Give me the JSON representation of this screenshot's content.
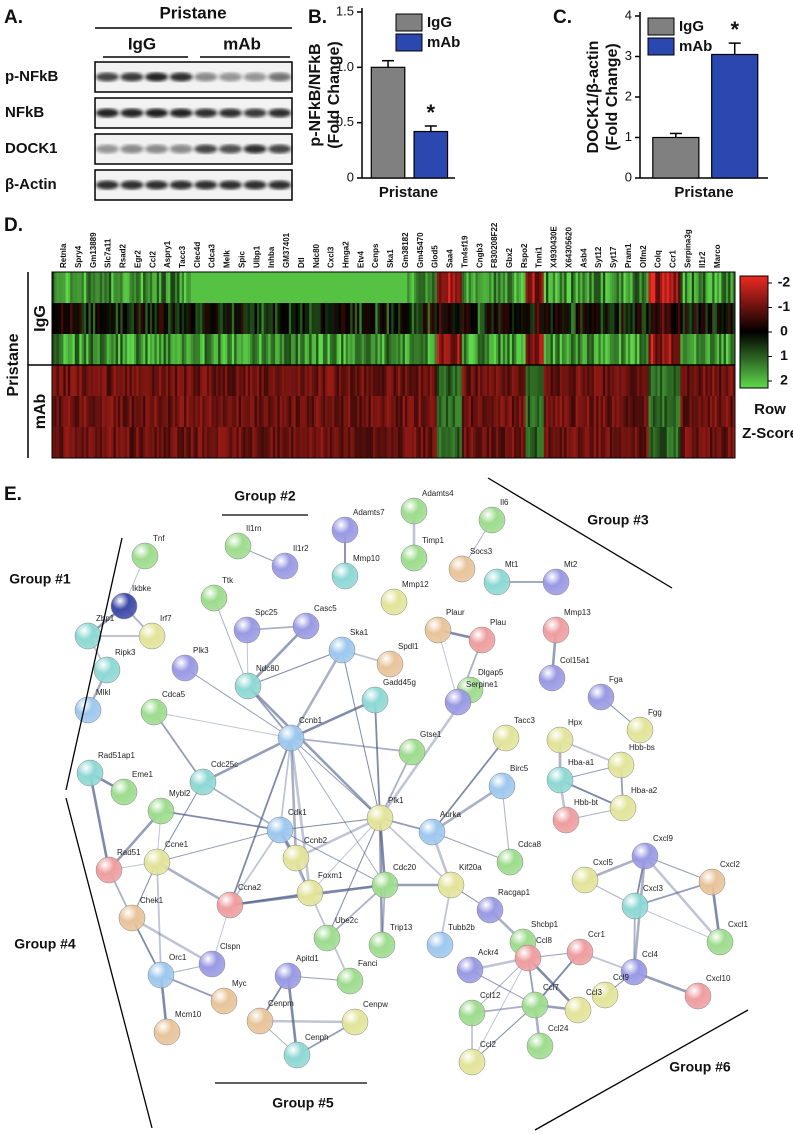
{
  "panel_a": {
    "label": "A.",
    "treatment": "Pristane",
    "groups": [
      "IgG",
      "mAb"
    ],
    "rows": [
      "p-NFkB",
      "NFkB",
      "DOCK1",
      "β-Actin"
    ]
  },
  "chart_data": [
    {
      "type": "bar",
      "label": "B.",
      "ylabel": [
        "p-NFkB/NFkB",
        "(Fold Change)"
      ],
      "categories": [
        "Pristane"
      ],
      "series": [
        {
          "name": "IgG",
          "color": "#808080",
          "values": [
            1.0
          ],
          "errors": [
            0.06
          ]
        },
        {
          "name": "mAb",
          "color": "#2b47b0",
          "values": [
            0.42
          ],
          "errors": [
            0.05
          ]
        }
      ],
      "annotation": "*",
      "ylim": [
        0,
        1.5
      ],
      "yticks": [
        0,
        0.5,
        {
          "value": 1,
          "label": "1.0"
        },
        1.5
      ]
    },
    {
      "type": "bar",
      "label": "C.",
      "ylabel": [
        "DOCK1/β-actin",
        "(Fold Change)"
      ],
      "categories": [
        "Pristane"
      ],
      "series": [
        {
          "name": "IgG",
          "color": "#808080",
          "values": [
            1.0
          ],
          "errors": [
            0.1
          ]
        },
        {
          "name": "mAb",
          "color": "#2b47b0",
          "values": [
            3.05
          ],
          "errors": [
            0.28
          ]
        }
      ],
      "annotation": "*",
      "ylim": [
        0,
        4
      ],
      "yticks": [
        0,
        1,
        2,
        3,
        4
      ]
    }
  ],
  "heatmap": {
    "label": "D.",
    "treatment": "Pristane",
    "groups": [
      "IgG",
      "mAb"
    ],
    "genes": [
      "Retnla",
      "Spry4",
      "Gm13889",
      "Slc7a11",
      "Rsad2",
      "Egr2",
      "Ccl2",
      "Aspry1",
      "Tacc3",
      "Clec4d",
      "Cdca3",
      "Melk",
      "Spic",
      "Ulbp1",
      "Inhba",
      "GM37401",
      "Dtl",
      "Ndc80",
      "Cxcl3",
      "Hmga2",
      "Etv4",
      "Cenps",
      "Ska1",
      "Gm38182",
      "Gm45470",
      "Glod5",
      "Saa4",
      "Tm4sf19",
      "Cngb3",
      "F830208F22",
      "Gbx2",
      "Rspo2",
      "Tnni1",
      "X4930430E",
      "X64305620",
      "Asb4",
      "Syt12",
      "Syt17",
      "Pram1",
      "Olfm2",
      "Colq",
      "Ccr1",
      "Serpina3g",
      "Il1r2",
      "Marco"
    ],
    "scale_ticks": [
      -2,
      -1,
      0,
      1,
      2
    ],
    "scale_title": [
      "Row",
      "Z-Score"
    ]
  },
  "network": {
    "label": "E.",
    "groups": [
      "Group #1",
      "Group #2",
      "Group #3",
      "Group #4",
      "Group #5",
      "Group #6"
    ],
    "nodes": [
      "Tnf",
      "Ikbke",
      "Irf7",
      "Zbp1",
      "Ripk3",
      "Mlkl",
      "Rad51ap1",
      "Eme1",
      "Rad51",
      "Ccne1",
      "Chek1",
      "Orc1",
      "Clspn",
      "Myc",
      "Mcm10",
      "Mybl2",
      "Cdca5",
      "Plk3",
      "Spc25",
      "Ttk",
      "Casc5",
      "Ndc80",
      "Ska1",
      "Spdl1",
      "Gadd45g",
      "Ccnb1",
      "Cdc25c",
      "Cdk1",
      "Ccnb2",
      "Plk1",
      "Gtse1",
      "Aurka",
      "Birc5",
      "Cdca8",
      "Ccna2",
      "Foxm1",
      "Cdc20",
      "Kif20a",
      "Racgap1",
      "Shcbp1",
      "Tubb2b",
      "Ube2c",
      "Trip13",
      "Apitd1",
      "Fanci",
      "Cenpm",
      "Cenpw",
      "Cenph",
      "Dlgap5",
      "Tacc3",
      "Il1rn",
      "Il1r2",
      "Adamts7",
      "Mmp10",
      "Adamts4",
      "Timp1",
      "Mmp12",
      "Il6",
      "Socs3",
      "Mt1",
      "Mt2",
      "Plaur",
      "Plau",
      "Serpine1",
      "Mmp13",
      "Col15a1",
      "Fga",
      "Fgg",
      "Hpx",
      "Hbb-bs",
      "Hba-a1",
      "Hba-a2",
      "Hbb-bt",
      "Cxcl9",
      "Cxcl5",
      "Cxcl2",
      "Cxcl3",
      "Cxcl1",
      "Ccl4",
      "Cxcl10",
      "Ccl9",
      "Ccr1",
      "Ccl8",
      "Ackr4",
      "Ccl12",
      "Ccl7",
      "Ccl3",
      "Ccl2",
      "Ccl24"
    ]
  }
}
